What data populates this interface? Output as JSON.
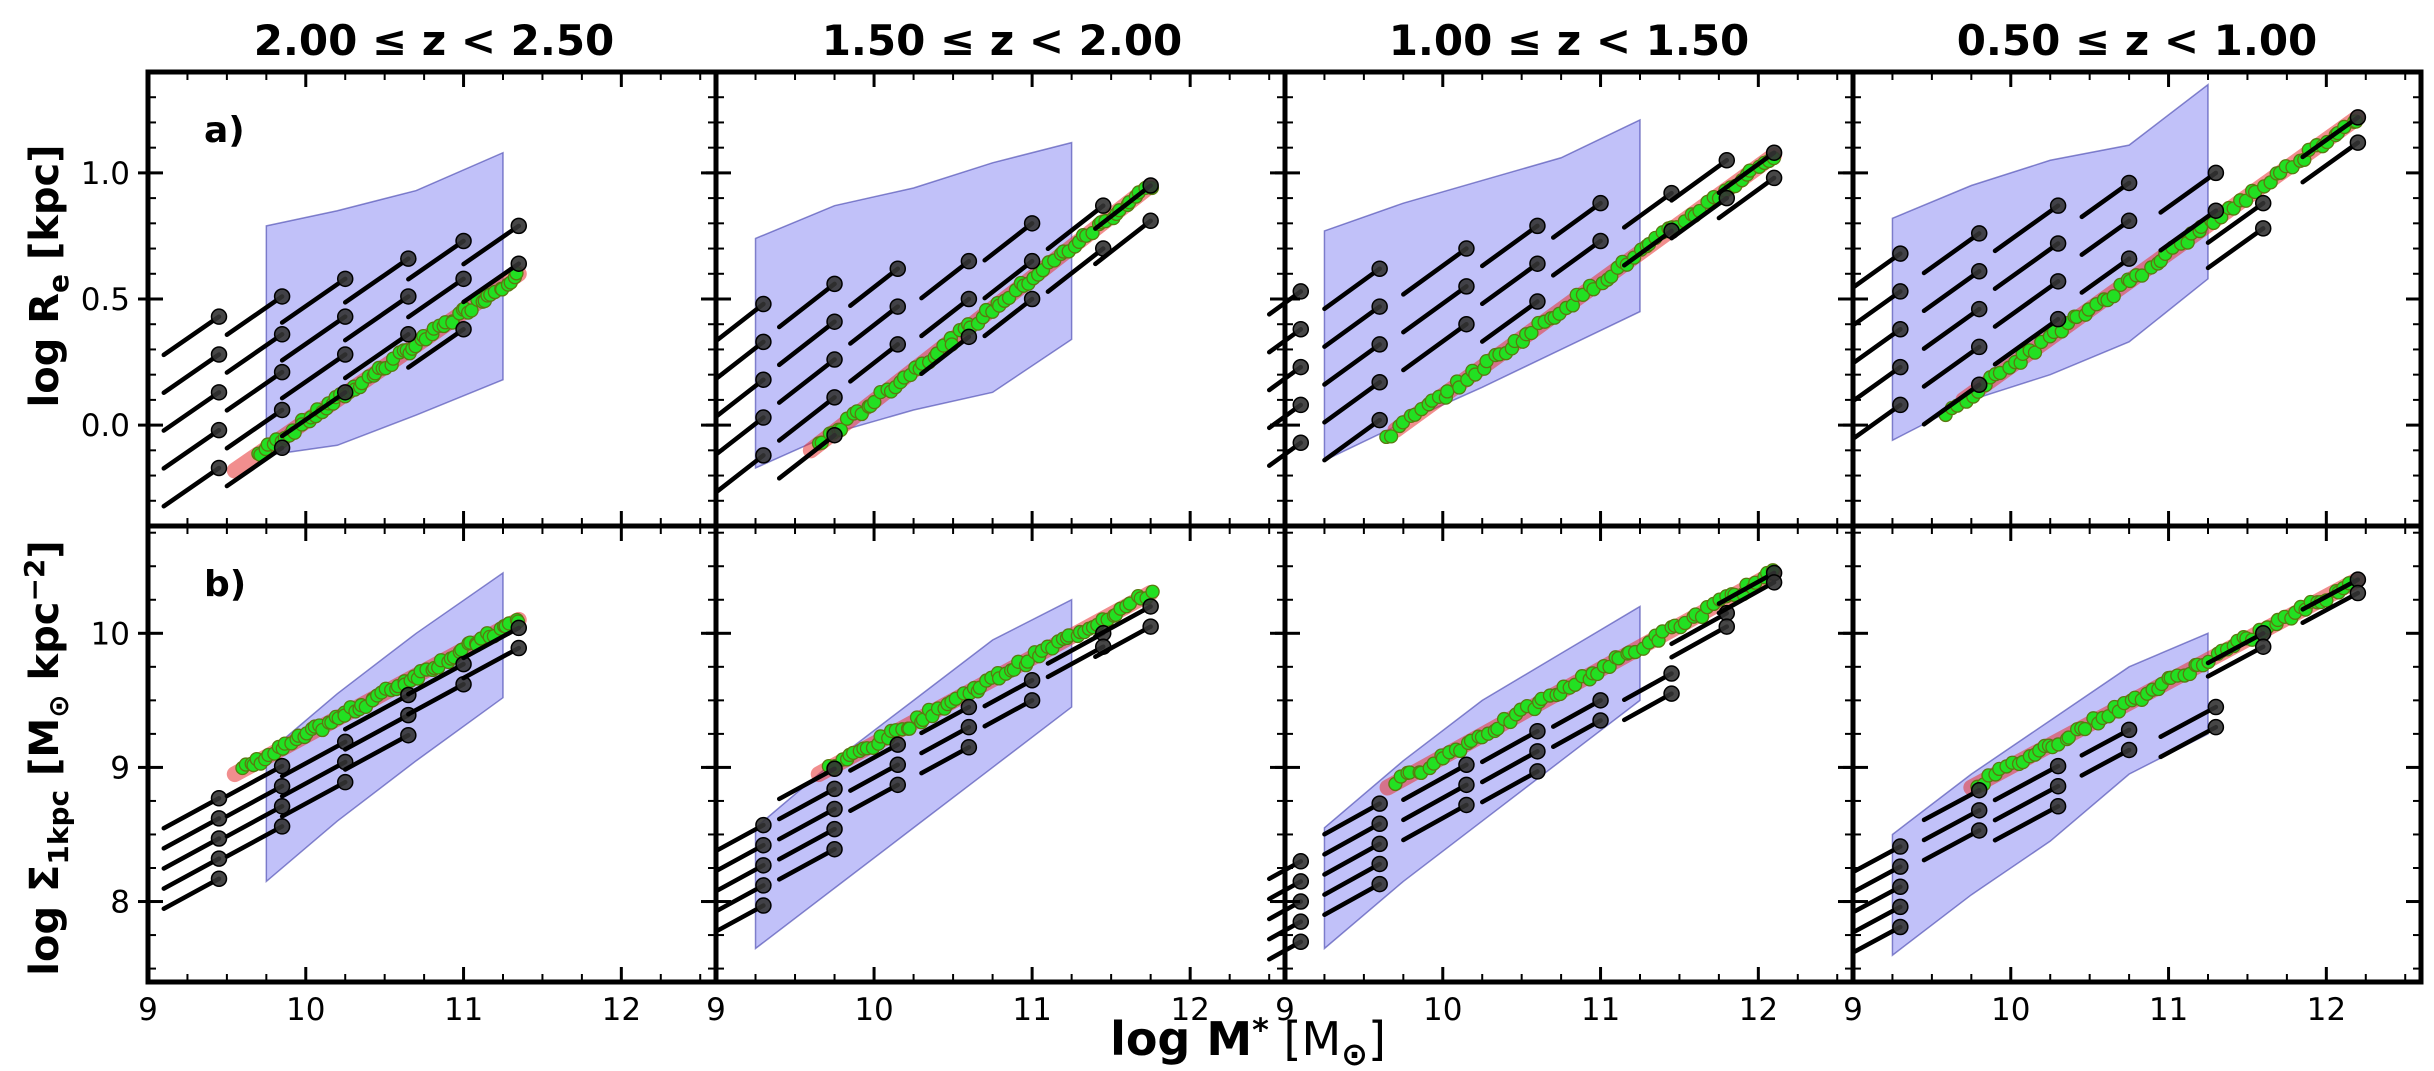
{
  "colors": {
    "band": "#5b5bf0",
    "band_edge": "#3c3caa",
    "track_fill": "#e63232",
    "green": "#22e022",
    "green_edge": "#5a7a10",
    "black": "#000000"
  },
  "figure": {
    "x_label": "log M",
    "x_label_sub": "*",
    "x_label_unit": " [M",
    "x_label_sun": "⊙",
    "x_label_close": "]",
    "row_labels": [
      {
        "main": "log R",
        "sub": "e",
        "unit": " [kpc]"
      },
      {
        "main": "log Σ",
        "sub": "1kpc",
        "unit": " [M",
        "sun": "⊙",
        "unit2": " kpc",
        "sup": "−2",
        "close": "]"
      }
    ],
    "panel_letters": [
      "a)",
      "b)"
    ]
  },
  "chart_data": {
    "type": "scatter",
    "xlim": [
      9,
      12.6
    ],
    "x_ticks": [
      "9",
      "10",
      "11",
      "12"
    ],
    "rows": [
      {
        "name": "Re",
        "ylim": [
          -0.4,
          1.4
        ],
        "y_ticks": [
          {
            "v": 0.0,
            "label": "0.0"
          },
          {
            "v": 0.5,
            "label": "0.5"
          },
          {
            "v": 1.0,
            "label": "1.0"
          }
        ]
      },
      {
        "name": "Sigma1kpc",
        "ylim": [
          7.4,
          10.8
        ],
        "y_ticks": [
          {
            "v": 8,
            "label": "8"
          },
          {
            "v": 9,
            "label": "9"
          },
          {
            "v": 10,
            "label": "10"
          }
        ]
      }
    ],
    "columns": [
      {
        "title": "2.00 ≤ z < 2.50",
        "re": {
          "band": {
            "x": [
              9.75,
              10.2,
              10.7,
              11.25
            ],
            "upper": [
              0.79,
              0.85,
              0.93,
              1.08
            ],
            "lower": [
              -0.12,
              -0.08,
              0.04,
              0.18
            ]
          },
          "ridge": [
            [
              9.55,
              -0.18
            ],
            [
              11.35,
              0.6
            ]
          ],
          "green_x": [
            9.7,
            11.35
          ],
          "tracks_x": [
            [
              9.1,
              9.45
            ],
            [
              9.5,
              9.85
            ],
            [
              9.85,
              10.25
            ],
            [
              10.25,
              10.65
            ],
            [
              10.65,
              11.0
            ],
            [
              11.0,
              11.35
            ]
          ],
          "ends": [
            [
              0.43,
              0.28,
              0.13,
              -0.02,
              -0.17
            ],
            [
              0.51,
              0.36,
              0.21,
              0.06,
              -0.09
            ],
            [
              0.58,
              0.43,
              0.28,
              0.13
            ],
            [
              0.66,
              0.51,
              0.36
            ],
            [
              0.73,
              0.58,
              0.38
            ],
            [
              0.79,
              0.64
            ]
          ]
        },
        "sig": {
          "band": {
            "x": [
              9.75,
              10.2,
              10.7,
              11.25
            ],
            "upper": [
              9.1,
              9.55,
              10.0,
              10.45
            ],
            "lower": [
              8.15,
              8.6,
              9.05,
              9.52
            ]
          },
          "ridge": [
            [
              9.55,
              8.95
            ],
            [
              11.35,
              10.1
            ]
          ],
          "green_x": [
            9.6,
            11.35
          ],
          "tracks_x": [
            [
              9.1,
              9.45
            ],
            [
              9.5,
              9.85
            ],
            [
              9.85,
              10.25
            ],
            [
              10.25,
              10.65
            ],
            [
              10.65,
              11.0
            ],
            [
              11.0,
              11.35
            ]
          ],
          "ends": [
            [
              8.77,
              8.62,
              8.47,
              8.32,
              8.17
            ],
            [
              9.01,
              8.86,
              8.71,
              8.56
            ],
            [
              9.19,
              9.04,
              8.89
            ],
            [
              9.54,
              9.39,
              9.24
            ],
            [
              9.77,
              9.62
            ],
            [
              10.04,
              9.89
            ]
          ]
        }
      },
      {
        "title": "1.50 ≤ z < 2.00",
        "re": {
          "band": {
            "x": [
              9.25,
              9.75,
              10.25,
              10.75,
              11.25
            ],
            "upper": [
              0.74,
              0.87,
              0.94,
              1.04,
              1.12
            ],
            "lower": [
              -0.17,
              -0.03,
              0.06,
              0.13,
              0.34
            ]
          },
          "ridge": [
            [
              9.6,
              -0.1
            ],
            [
              11.75,
              0.95
            ]
          ],
          "green_x": [
            9.65,
            11.75
          ],
          "tracks_x": [
            [
              9.0,
              9.3
            ],
            [
              9.4,
              9.75
            ],
            [
              9.85,
              10.15
            ],
            [
              10.3,
              10.6
            ],
            [
              10.7,
              11.0
            ],
            [
              11.1,
              11.45
            ],
            [
              11.4,
              11.75
            ]
          ],
          "ends": [
            [
              0.48,
              0.33,
              0.18,
              0.03,
              -0.12
            ],
            [
              0.56,
              0.41,
              0.26,
              0.11,
              -0.04
            ],
            [
              0.62,
              0.47,
              0.32
            ],
            [
              0.65,
              0.5,
              0.35
            ],
            [
              0.8,
              0.65,
              0.5
            ],
            [
              0.87,
              0.7
            ],
            [
              0.95,
              0.81
            ]
          ]
        },
        "sig": {
          "band": {
            "x": [
              9.25,
              9.75,
              10.25,
              10.75,
              11.25
            ],
            "upper": [
              8.55,
              9.05,
              9.5,
              9.95,
              10.25
            ],
            "lower": [
              7.65,
              8.1,
              8.55,
              9.0,
              9.45
            ]
          },
          "ridge": [
            [
              9.65,
              8.95
            ],
            [
              11.75,
              10.3
            ]
          ],
          "green_x": [
            9.7,
            11.75
          ],
          "tracks_x": [
            [
              9.0,
              9.3
            ],
            [
              9.4,
              9.75
            ],
            [
              9.85,
              10.15
            ],
            [
              10.3,
              10.6
            ],
            [
              10.7,
              11.0
            ],
            [
              11.1,
              11.45
            ],
            [
              11.4,
              11.75
            ]
          ],
          "ends": [
            [
              8.57,
              8.42,
              8.27,
              8.12,
              7.97
            ],
            [
              8.99,
              8.84,
              8.69,
              8.54,
              8.39
            ],
            [
              9.17,
              9.02,
              8.87
            ],
            [
              9.45,
              9.3,
              9.15
            ],
            [
              9.65,
              9.5
            ],
            [
              10.0,
              9.9
            ],
            [
              10.2,
              10.05
            ]
          ]
        }
      },
      {
        "title": "1.00 ≤ z < 1.50",
        "re": {
          "band": {
            "x": [
              9.25,
              9.75,
              10.25,
              10.75,
              11.25
            ],
            "upper": [
              0.77,
              0.88,
              0.97,
              1.06,
              1.21
            ],
            "lower": [
              -0.14,
              0.01,
              0.15,
              0.3,
              0.45
            ]
          },
          "ridge": [
            [
              9.7,
              -0.02
            ],
            [
              12.1,
              1.07
            ]
          ],
          "green_x": [
            9.65,
            12.1
          ],
          "tracks_x": [
            [
              8.9,
              9.1
            ],
            [
              9.25,
              9.6
            ],
            [
              9.75,
              10.15
            ],
            [
              10.25,
              10.6
            ],
            [
              10.7,
              11.0
            ],
            [
              11.15,
              11.45
            ],
            [
              11.45,
              11.8
            ],
            [
              11.75,
              12.1
            ]
          ],
          "ends": [
            [
              0.53,
              0.38,
              0.23,
              0.08,
              -0.07
            ],
            [
              0.62,
              0.47,
              0.32,
              0.17,
              0.02
            ],
            [
              0.7,
              0.55,
              0.4
            ],
            [
              0.79,
              0.64,
              0.49
            ],
            [
              0.88,
              0.73
            ],
            [
              0.92,
              0.77
            ],
            [
              1.05,
              0.9
            ],
            [
              1.08,
              0.98
            ]
          ]
        },
        "sig": {
          "band": {
            "x": [
              9.25,
              9.75,
              10.25,
              10.75,
              11.25
            ],
            "upper": [
              8.55,
              9.05,
              9.5,
              9.85,
              10.2
            ],
            "lower": [
              7.65,
              8.15,
              8.6,
              9.05,
              9.5
            ]
          },
          "ridge": [
            [
              9.65,
              8.85
            ],
            [
              12.1,
              10.45
            ]
          ],
          "green_x": [
            9.7,
            12.1
          ],
          "tracks_x": [
            [
              8.9,
              9.1
            ],
            [
              9.25,
              9.6
            ],
            [
              9.75,
              10.15
            ],
            [
              10.25,
              10.6
            ],
            [
              10.7,
              11.0
            ],
            [
              11.15,
              11.45
            ],
            [
              11.45,
              11.8
            ],
            [
              11.75,
              12.1
            ]
          ],
          "ends": [
            [
              8.3,
              8.15,
              8.0,
              7.85,
              7.7
            ],
            [
              8.73,
              8.58,
              8.43,
              8.28,
              8.13
            ],
            [
              9.02,
              8.87,
              8.72
            ],
            [
              9.27,
              9.12,
              8.97
            ],
            [
              9.5,
              9.35
            ],
            [
              9.7,
              9.55
            ],
            [
              10.15,
              10.05
            ],
            [
              10.45,
              10.38
            ]
          ]
        }
      },
      {
        "title": "0.50 ≤ z < 1.00",
        "re": {
          "band": {
            "x": [
              9.25,
              9.75,
              10.25,
              10.75,
              11.25
            ],
            "upper": [
              0.82,
              0.95,
              1.05,
              1.11,
              1.35
            ],
            "lower": [
              -0.06,
              0.1,
              0.2,
              0.33,
              0.58
            ]
          },
          "ridge": [
            [
              9.7,
              0.1
            ],
            [
              12.2,
              1.22
            ]
          ],
          "green_x": [
            9.6,
            12.2
          ],
          "tracks_x": [
            [
              9.0,
              9.3
            ],
            [
              9.45,
              9.8
            ],
            [
              9.9,
              10.3
            ],
            [
              10.45,
              10.75
            ],
            [
              10.95,
              11.3
            ],
            [
              11.25,
              11.6
            ],
            [
              11.85,
              12.2
            ]
          ],
          "ends": [
            [
              0.68,
              0.53,
              0.38,
              0.23,
              0.08
            ],
            [
              0.76,
              0.61,
              0.46,
              0.31,
              0.16
            ],
            [
              0.87,
              0.72,
              0.57,
              0.42
            ],
            [
              0.96,
              0.81,
              0.66
            ],
            [
              1.0,
              0.85
            ],
            [
              0.88,
              0.78
            ],
            [
              1.22,
              1.12
            ]
          ]
        },
        "sig": {
          "band": {
            "x": [
              9.25,
              9.75,
              10.25,
              10.75,
              11.25
            ],
            "upper": [
              8.5,
              8.95,
              9.35,
              9.75,
              10.0
            ],
            "lower": [
              7.6,
              8.05,
              8.45,
              8.95,
              9.25
            ]
          },
          "ridge": [
            [
              9.75,
              8.85
            ],
            [
              12.2,
              10.4
            ]
          ],
          "green_x": [
            9.8,
            12.15
          ],
          "tracks_x": [
            [
              9.0,
              9.3
            ],
            [
              9.45,
              9.8
            ],
            [
              9.9,
              10.3
            ],
            [
              10.45,
              10.75
            ],
            [
              10.95,
              11.3
            ],
            [
              11.25,
              11.6
            ],
            [
              11.85,
              12.2
            ]
          ],
          "ends": [
            [
              8.41,
              8.26,
              8.11,
              7.96,
              7.81
            ],
            [
              8.83,
              8.68,
              8.53
            ],
            [
              9.01,
              8.86,
              8.71
            ],
            [
              9.28,
              9.13
            ],
            [
              9.45,
              9.3
            ],
            [
              10.0,
              9.9
            ],
            [
              10.4,
              10.3
            ]
          ]
        }
      }
    ]
  }
}
